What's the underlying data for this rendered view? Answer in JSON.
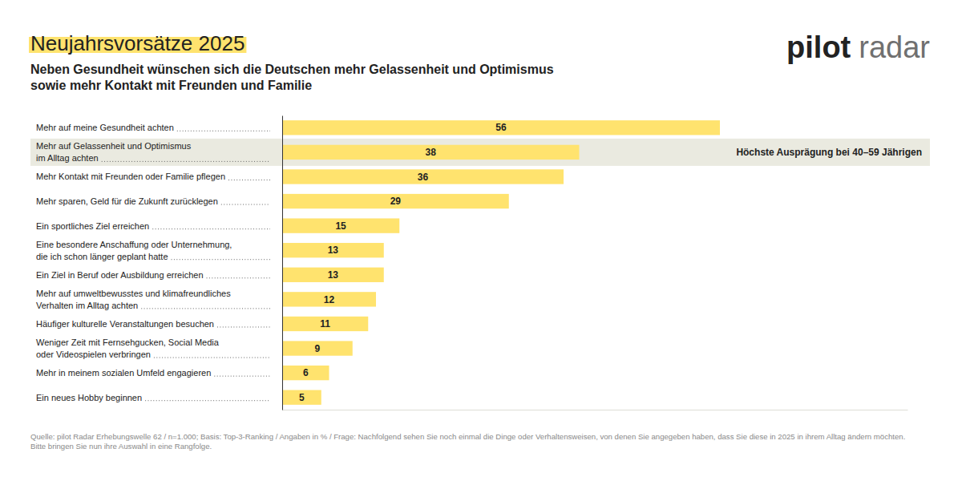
{
  "chart_data": {
    "type": "bar",
    "orientation": "horizontal",
    "title": "Neujahrsvorsätze 2025",
    "subtitle": [
      "Neben Gesundheit wünschen sich die Deutschen mehr Gelassenheit und Optimismus",
      "sowie mehr Kontakt mit Freunden und Familie"
    ],
    "brand": "pilot radar",
    "categories": [
      "Mehr auf meine Gesundheit achten",
      "Mehr auf Gelassenheit und Optimismus\nim Alltag achten",
      "Mehr Kontakt mit Freunden oder Familie pflegen",
      "Mehr sparen, Geld für die Zukunft zurücklegen",
      "Ein sportliches Ziel erreichen",
      "Eine besondere Anschaffung oder Unternehmung,\ndie ich schon länger geplant hatte",
      "Ein Ziel in Beruf oder Ausbildung erreichen",
      "Mehr auf umweltbewusstes und klimafreundliches\nVerhalten im Alltag achten",
      "Häufiger kulturelle Veranstaltungen besuchen",
      "Weniger Zeit mit Fernsehgucken, Social Media\noder Videospielen verbringen",
      "Mehr in meinem sozialen Umfeld engagieren",
      "Ein neues Hobby beginnen"
    ],
    "values": [
      56,
      38,
      36,
      29,
      15,
      13,
      13,
      12,
      11,
      9,
      6,
      5
    ],
    "color": "#ffe36e",
    "xlim": [
      0,
      80
    ],
    "xticks": [],
    "grid": false,
    "data_labels": true,
    "tick_labels": "y",
    "annotations": [
      {
        "category": "Mehr auf Gelassenheit und Optimismus\nim Alltag achten",
        "text": "Höchste Ausprägung bei 40–59 Jährigen"
      }
    ],
    "source": [
      "Quelle: pilot Radar Erhebungswelle 62 / n=1.000; Basis: Top-3-Ranking / Angaben in % / Frage: Nachfolgend sehen Sie noch einmal die Dinge oder Verhaltensweisen, von denen Sie angegeben haben, dass Sie diese in 2025 in ihrem Alltag ändern möchten.",
      "Bitte bringen Sie nun ihre Auswahl in eine Rangfolge."
    ]
  }
}
